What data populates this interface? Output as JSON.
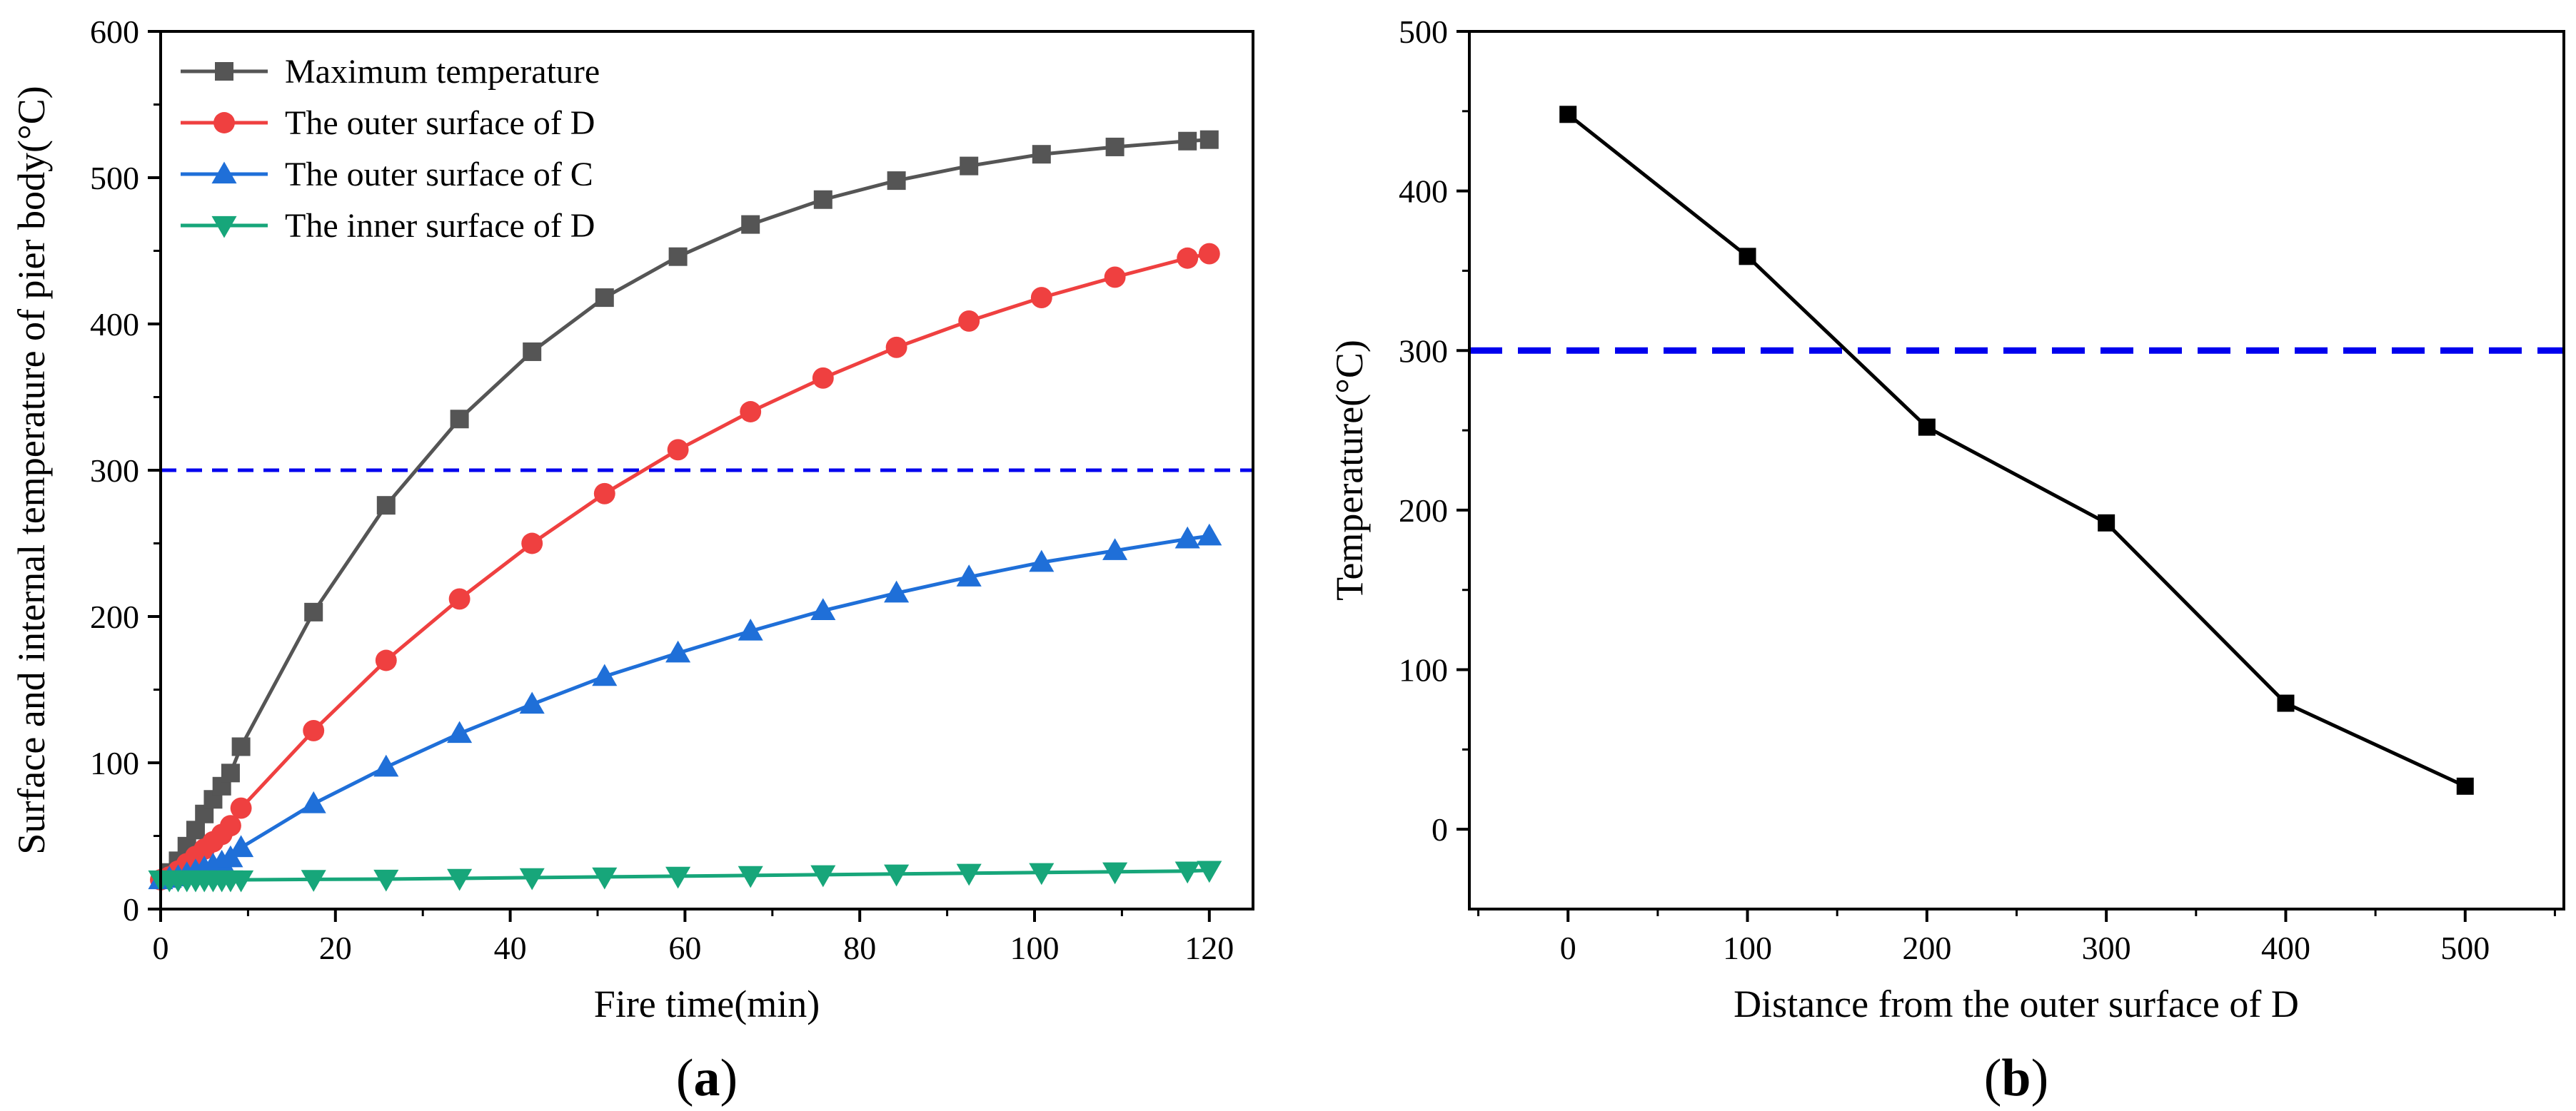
{
  "chart_data": [
    {
      "type": "line",
      "panel_label": "a",
      "xlabel": "Fire time(min)",
      "ylabel": "Surface and internal temperature of pier body(°C)",
      "xlim": [
        0,
        125
      ],
      "ylim": [
        0,
        600
      ],
      "xticks": [
        0,
        20,
        40,
        60,
        80,
        100,
        120
      ],
      "yticks": [
        0,
        100,
        200,
        300,
        400,
        500,
        600
      ],
      "reference_line": {
        "y": 300,
        "color": "#0000ee",
        "style": "dashed"
      },
      "legend_position": "top-left",
      "series": [
        {
          "name": "Maximum temperature",
          "color": "#555555",
          "marker": "square",
          "x": [
            0,
            1,
            2,
            3,
            4,
            5,
            6,
            7,
            8,
            9.2,
            17.5,
            25.8,
            34.2,
            42.5,
            50.8,
            59.2,
            67.5,
            75.8,
            84.2,
            92.5,
            100.8,
            109.2,
            117.5,
            120
          ],
          "y": [
            20,
            25,
            33,
            43,
            54,
            65,
            75,
            84,
            93,
            111,
            203,
            276,
            335,
            381,
            418,
            446,
            468,
            485,
            498,
            508,
            516,
            521,
            525,
            526
          ]
        },
        {
          "name": "The outer surface of D",
          "color": "#ef4040",
          "marker": "circle",
          "x": [
            0,
            1,
            2,
            3,
            4,
            5,
            6,
            7,
            8,
            9.2,
            17.5,
            25.8,
            34.2,
            42.5,
            50.8,
            59.2,
            67.5,
            75.8,
            84.2,
            92.5,
            100.8,
            109.2,
            117.5,
            120
          ],
          "y": [
            20,
            22,
            26,
            31,
            36,
            41,
            46,
            51,
            57,
            69,
            122,
            170,
            212,
            250,
            284,
            314,
            340,
            363,
            384,
            402,
            418,
            432,
            445,
            448
          ]
        },
        {
          "name": "The outer surface of C",
          "color": "#1f6fd8",
          "marker": "triangle-up",
          "x": [
            0,
            1,
            2,
            3,
            4,
            5,
            6,
            7,
            8,
            9.2,
            17.5,
            25.8,
            34.2,
            42.5,
            50.8,
            59.2,
            67.5,
            75.8,
            84.2,
            92.5,
            100.8,
            109.2,
            117.5,
            120
          ],
          "y": [
            20,
            21,
            22,
            24,
            26,
            28,
            30,
            32,
            35,
            42,
            72,
            97,
            120,
            140,
            159,
            175,
            190,
            204,
            216,
            227,
            237,
            245,
            253,
            255
          ]
        },
        {
          "name": "The inner surface of D",
          "color": "#17a67a",
          "marker": "triangle-down",
          "x": [
            0,
            1,
            2,
            3,
            4,
            5,
            6,
            7,
            8,
            9.2,
            17.5,
            25.8,
            34.2,
            42.5,
            50.8,
            59.2,
            67.5,
            75.8,
            84.2,
            92.5,
            100.8,
            109.2,
            117.5,
            120
          ],
          "y": [
            20,
            20,
            20,
            20,
            20,
            20,
            20,
            20,
            20,
            20,
            20.3,
            20.5,
            21,
            21.5,
            22,
            22.5,
            23,
            23.5,
            24,
            24.5,
            25,
            25.5,
            26,
            26.5
          ]
        }
      ]
    },
    {
      "type": "line",
      "panel_label": "b",
      "xlabel": "Distance from the outer surface of D",
      "ylabel": "Temperature(°C)",
      "xlim": [
        -55,
        555
      ],
      "ylim": [
        -50,
        500
      ],
      "xticks": [
        0,
        100,
        200,
        300,
        400,
        500
      ],
      "yticks": [
        0,
        100,
        200,
        300,
        400,
        500
      ],
      "reference_line": {
        "y": 300,
        "color": "#0000ee",
        "style": "dashed"
      },
      "series": [
        {
          "name": "Temperature",
          "color": "#000000",
          "marker": "square",
          "x": [
            0,
            100,
            200,
            300,
            400,
            500
          ],
          "y": [
            448,
            359,
            252,
            192,
            79,
            27
          ]
        }
      ]
    }
  ]
}
